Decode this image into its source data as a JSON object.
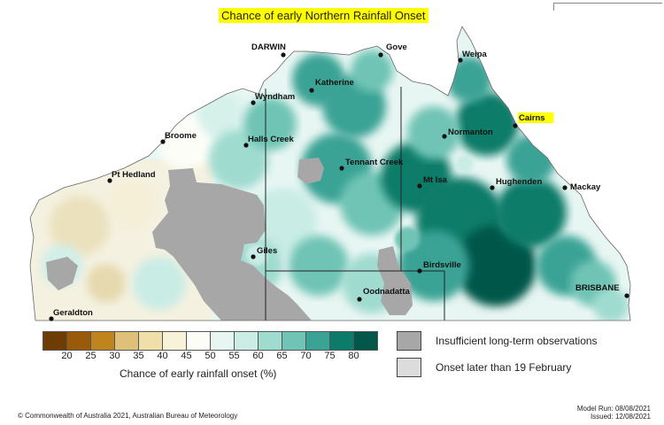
{
  "title": "Chance of early Northern Rainfall Onset",
  "colors": {
    "scale": [
      "#6e3c05",
      "#995a0a",
      "#c0841e",
      "#dfc07a",
      "#efdfa8",
      "#f8f3d8",
      "#fdfdf8",
      "#e8f6f3",
      "#c9ece5",
      "#a0dbd0",
      "#6fc4b5",
      "#3aa395",
      "#0d7b69",
      "#02574a"
    ],
    "insufficient": "#a7a7a7",
    "onset_later": "#dcdcdc",
    "highlight": "#ffff00"
  },
  "places": [
    {
      "name": "DARWIN",
      "highlight": false
    },
    {
      "name": "Gove",
      "highlight": false
    },
    {
      "name": "Weipa",
      "highlight": false
    },
    {
      "name": "Wyndham",
      "highlight": false
    },
    {
      "name": "Katherine",
      "highlight": false
    },
    {
      "name": "Cairns",
      "highlight": true
    },
    {
      "name": "Broome",
      "highlight": false
    },
    {
      "name": "Halls Creek",
      "highlight": false
    },
    {
      "name": "Normanton",
      "highlight": false
    },
    {
      "name": "Tennant Creek",
      "highlight": false
    },
    {
      "name": "Pt Hedland",
      "highlight": false
    },
    {
      "name": "Mt Isa",
      "highlight": false
    },
    {
      "name": "Hughenden",
      "highlight": false
    },
    {
      "name": "Mackay",
      "highlight": false
    },
    {
      "name": "Giles",
      "highlight": false
    },
    {
      "name": "Birdsville",
      "highlight": false
    },
    {
      "name": "Oodnadatta",
      "highlight": false
    },
    {
      "name": "BRISBANE",
      "highlight": false
    },
    {
      "name": "Geraldton",
      "highlight": false
    }
  ],
  "legend": {
    "ticks": [
      "20",
      "25",
      "30",
      "35",
      "40",
      "45",
      "50",
      "55",
      "60",
      "65",
      "70",
      "75",
      "80"
    ],
    "caption": "Chance of early rainfall onset (%)"
  },
  "key": {
    "insufficient": "Insufficient long-term observations",
    "onset_later": "Onset later than 19 February"
  },
  "footer": {
    "copyright": "© Commonwealth of Australia 2021, Australian Bureau of Meteorology",
    "model_run": "Model Run: 08/08/2021",
    "issued": "Issued: 12/08/2021"
  }
}
